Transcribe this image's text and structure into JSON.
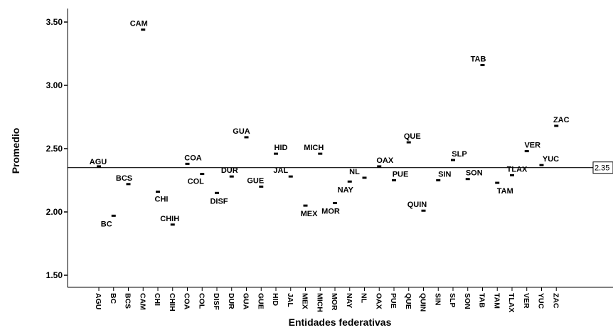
{
  "chart_data": {
    "type": "scatter",
    "xlabel": "Entidades federativas",
    "ylabel": "Promedio",
    "ylim": [
      1.4,
      3.66
    ],
    "yticks": [
      "1.50",
      "2.00",
      "2.50",
      "3.00",
      "3.50"
    ],
    "reference_line": {
      "value": 2.35,
      "label": "2.35"
    },
    "grid": false,
    "categories": [
      "AGU",
      "BC",
      "BCS",
      "CAM",
      "CHI",
      "CHIH",
      "COA",
      "COL",
      "DISF",
      "DUR",
      "GUA",
      "GUE",
      "HID",
      "JAL",
      "MEX",
      "MICH",
      "MOR",
      "NAY",
      "NL",
      "OAX",
      "PUE",
      "QUE",
      "QUIN",
      "SIN",
      "SLP",
      "SON",
      "TAB",
      "TAM",
      "TLAX",
      "VER",
      "YUC",
      "ZAC"
    ],
    "values": [
      2.36,
      1.97,
      2.22,
      3.44,
      2.16,
      1.9,
      2.38,
      2.3,
      2.15,
      2.28,
      2.59,
      2.2,
      2.46,
      2.28,
      2.05,
      2.46,
      2.07,
      2.24,
      2.27,
      2.36,
      2.25,
      2.55,
      2.01,
      2.25,
      2.41,
      2.26,
      3.16,
      2.23,
      2.29,
      2.48,
      2.37,
      2.68
    ],
    "point_labels": [
      "AGU",
      "BC",
      "BCS",
      "CAM",
      "CHI",
      "CHIH",
      "COA",
      "COL",
      "DISF",
      "DUR",
      "GUA",
      "GUE",
      "HID",
      "JAL",
      "MEX",
      "MICH",
      "MOR",
      "NAY",
      "NL",
      "OAX",
      "PUE",
      "QUE",
      "QUIN",
      "SIN",
      "SLP",
      "SON",
      "TAB",
      "TAM",
      "TLAX",
      "VER",
      "YUC",
      "ZAC"
    ]
  }
}
